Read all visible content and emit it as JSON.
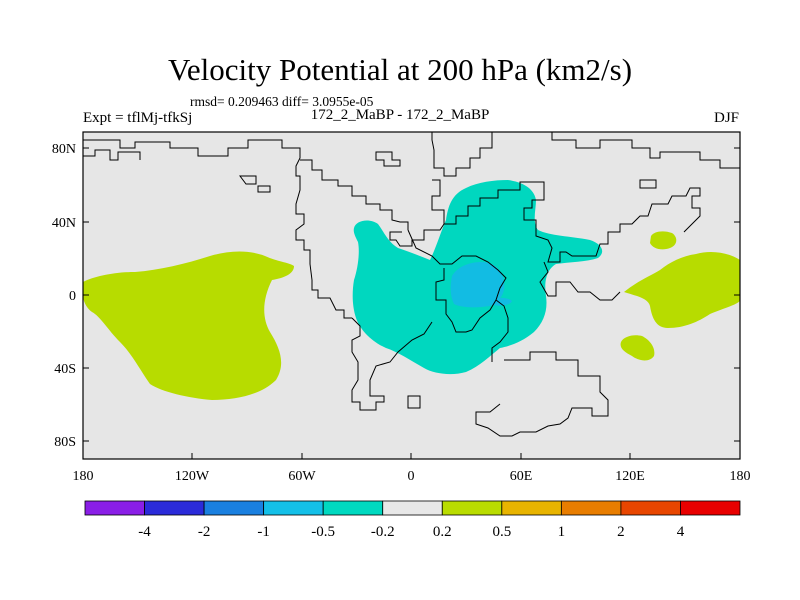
{
  "title": "Velocity Potential at 200 hPa (km2/s)",
  "subtitle_stats": "rmsd= 0.209463 diff= 3.0955e-05",
  "left_label": "Expt = tflMj-tfkSj",
  "center_label": "172_2_MaBP - 172_2_MaBP",
  "right_label": "DJF",
  "axes": {
    "x_ticks": [
      "180",
      "120W",
      "60W",
      "0",
      "60E",
      "120E",
      "180"
    ],
    "y_ticks": [
      "80N",
      "40N",
      "0",
      "40S",
      "80S"
    ]
  },
  "colorbar": {
    "labels": [
      "-4",
      "-2",
      "-1",
      "-0.5",
      "-0.2",
      "0.2",
      "0.5",
      "1",
      "2",
      "4"
    ],
    "colors": [
      "#8a1ee6",
      "#2b2bd9",
      "#1a80e0",
      "#14c0e8",
      "#00d9c0",
      "#e8e8e8",
      "#b9dc00",
      "#e8b400",
      "#e87d00",
      "#e84600",
      "#e80000"
    ]
  },
  "colors": {
    "background": "#e6e6e6",
    "positive_anomaly": "#b7dc00",
    "negative_anomaly": "#00d7bf",
    "strong_negative": "#12bce3",
    "coastline": "#000000"
  }
}
